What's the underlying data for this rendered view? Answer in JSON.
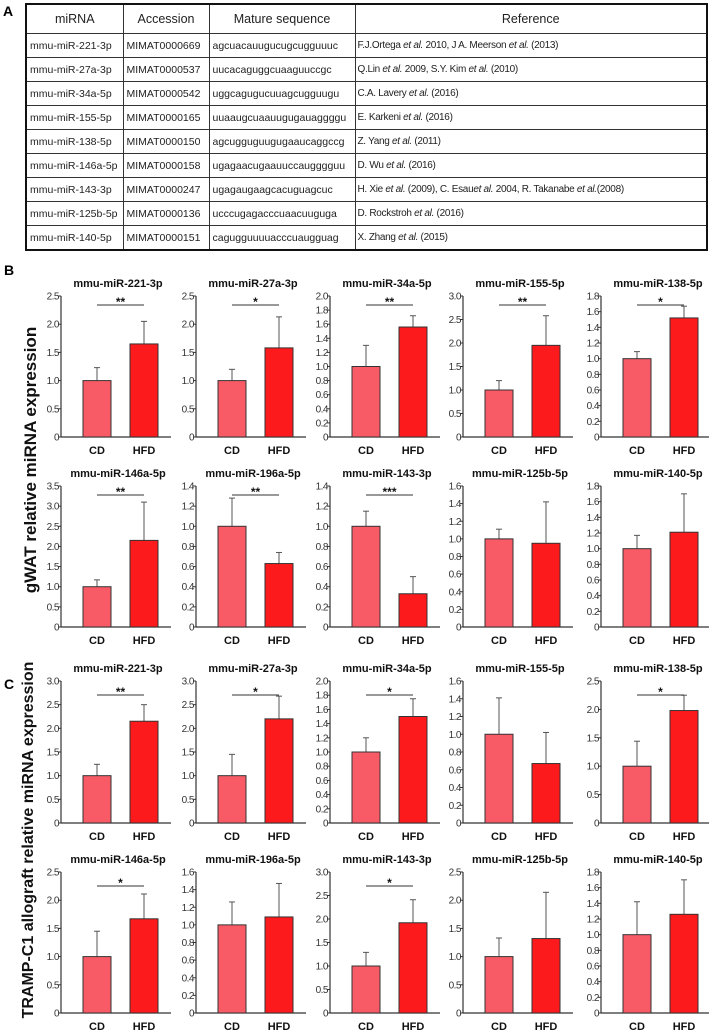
{
  "panel_a": {
    "label": "A",
    "headers": [
      "miRNA",
      "Accession",
      "Mature sequence",
      "Reference"
    ],
    "rows": [
      [
        "mmu-miR-221-3p",
        "MIMAT0000669",
        "agcuacauugucugcugguuuc",
        "F.J.Ortega et al. 2010, J A. Meerson et al. (2013)"
      ],
      [
        "mmu-miR-27a-3p",
        "MIMAT0000537",
        "uucacaguggcuaaguuccgc",
        "Q.Lin et al. 2009, S.Y. Kim et al. (2010)"
      ],
      [
        "mmu-miR-34a-5p",
        "MIMAT0000542",
        "uggcagugucuuagcugguugu",
        "C.A. Lavery et al. (2016)"
      ],
      [
        "mmu-miR-155-5p",
        "MIMAT0000165",
        "uuaaugcuaauugugauaggggu",
        "E. Karkeni et al. (2016)"
      ],
      [
        "mmu-miR-138-5p",
        "MIMAT0000150",
        "agcugguguugugaaucaggccg",
        "Z. Yang et al. (2011)"
      ],
      [
        "mmu-miR-146a-5p",
        "MIMAT0000158",
        "ugagaacugaauuccaugggguu",
        "D. Wu et al. (2016)"
      ],
      [
        "mmu-miR-143-3p",
        "MIMAT0000247",
        "ugagaugaagcacuguagcuc",
        "H. Xie et al. (2009), C. Esauet al. 2004, R. Takanabe et al.(2008)"
      ],
      [
        "mmu-miR-125b-5p",
        "MIMAT0000136",
        "ucccugagacccuaacuuguga",
        "D. Rockstroh et al. (2016)"
      ],
      [
        "mmu-miR-140-5p",
        "MIMAT0000151",
        "cagugguuuuacccuaugguag",
        "X. Zhang et al. (2015)"
      ]
    ]
  },
  "colors": {
    "cd": "#f85a66",
    "hfd": "#fd1a1c"
  },
  "chart_data": [
    {
      "panel": "B",
      "type": "bar",
      "ylabel": "gWAT relative miRNA expression",
      "categories": [
        "CD",
        "HFD"
      ],
      "charts": [
        {
          "title": "mmu-miR-221-3p",
          "ymax": 2.5,
          "step": 0.5,
          "values": [
            1.0,
            1.65
          ],
          "errors": [
            1.23,
            2.05
          ],
          "sig": "**"
        },
        {
          "title": "mmu-miR-27a-3p",
          "ymax": 2.5,
          "step": 0.5,
          "values": [
            1.0,
            1.58
          ],
          "errors": [
            1.2,
            2.13
          ],
          "sig": "*"
        },
        {
          "title": "mmu-miR-34a-5p",
          "ymax": 2.0,
          "step": 0.2,
          "values": [
            1.0,
            1.56
          ],
          "errors": [
            1.3,
            1.72
          ],
          "sig": "**"
        },
        {
          "title": "mmu-miR-155-5p",
          "ymax": 3.0,
          "step": 0.5,
          "values": [
            1.0,
            1.95
          ],
          "errors": [
            1.2,
            2.58
          ],
          "sig": "**"
        },
        {
          "title": "mmu-miR-138-5p",
          "ymax": 1.8,
          "step": 0.2,
          "values": [
            1.0,
            1.52
          ],
          "errors": [
            1.09,
            1.67
          ],
          "sig": "*"
        },
        {
          "title": "mmu-miR-146a-5p",
          "ymax": 3.5,
          "step": 0.5,
          "values": [
            1.0,
            2.15
          ],
          "errors": [
            1.17,
            3.1
          ],
          "sig": "**"
        },
        {
          "title": "mmu-miR-196a-5p",
          "ymax": 1.4,
          "step": 0.2,
          "values": [
            1.0,
            0.63
          ],
          "errors": [
            1.28,
            0.74
          ],
          "sig": "**"
        },
        {
          "title": "mmu-miR-143-3p",
          "ymax": 1.4,
          "step": 0.2,
          "values": [
            1.0,
            0.33
          ],
          "errors": [
            1.15,
            0.5
          ],
          "sig": "***"
        },
        {
          "title": "mmu-miR-125b-5p",
          "ymax": 1.6,
          "step": 0.2,
          "values": [
            1.0,
            0.95
          ],
          "errors": [
            1.11,
            1.42
          ],
          "sig": ""
        },
        {
          "title": "mmu-miR-140-5p",
          "ymax": 1.8,
          "step": 0.2,
          "values": [
            1.0,
            1.21
          ],
          "errors": [
            1.17,
            1.7
          ],
          "sig": ""
        }
      ]
    },
    {
      "panel": "C",
      "type": "bar",
      "ylabel": "TRAMP-C1 allograft relative miRNA expression",
      "categories": [
        "CD",
        "HFD"
      ],
      "charts": [
        {
          "title": "mmu-miR-221-3p",
          "ymax": 3.0,
          "step": 0.5,
          "values": [
            1.0,
            2.15
          ],
          "errors": [
            1.24,
            2.5
          ],
          "sig": "**"
        },
        {
          "title": "mmu-miR-27a-3p",
          "ymax": 3.0,
          "step": 0.5,
          "values": [
            1.0,
            2.2
          ],
          "errors": [
            1.45,
            2.68
          ],
          "sig": "*"
        },
        {
          "title": "mmu-miR-34a-5p",
          "ymax": 2.0,
          "step": 0.2,
          "values": [
            1.0,
            1.5
          ],
          "errors": [
            1.2,
            1.75
          ],
          "sig": "*"
        },
        {
          "title": "mmu-miR-155-5p",
          "ymax": 1.6,
          "step": 0.2,
          "values": [
            1.0,
            0.67
          ],
          "errors": [
            1.41,
            1.02
          ],
          "sig": ""
        },
        {
          "title": "mmu-miR-138-5p",
          "ymax": 2.5,
          "step": 0.5,
          "values": [
            1.0,
            1.98
          ],
          "errors": [
            1.44,
            2.25
          ],
          "sig": "*"
        },
        {
          "title": "mmu-miR-146a-5p",
          "ymax": 2.5,
          "step": 0.5,
          "values": [
            1.0,
            1.67
          ],
          "errors": [
            1.45,
            2.11
          ],
          "sig": "*"
        },
        {
          "title": "mmu-miR-196a-5p",
          "ymax": 1.6,
          "step": 0.2,
          "values": [
            1.0,
            1.09
          ],
          "errors": [
            1.26,
            1.47
          ],
          "sig": ""
        },
        {
          "title": "mmu-miR-143-3p",
          "ymax": 3.0,
          "step": 0.5,
          "values": [
            1.0,
            1.92
          ],
          "errors": [
            1.29,
            2.41
          ],
          "sig": "*"
        },
        {
          "title": "mmu-miR-125b-5p",
          "ymax": 2.5,
          "step": 0.5,
          "values": [
            1.0,
            1.32
          ],
          "errors": [
            1.33,
            2.14
          ],
          "sig": ""
        },
        {
          "title": "mmu-miR-140-5p",
          "ymax": 1.8,
          "step": 0.2,
          "values": [
            1.0,
            1.26
          ],
          "errors": [
            1.42,
            1.7
          ],
          "sig": ""
        }
      ]
    }
  ]
}
